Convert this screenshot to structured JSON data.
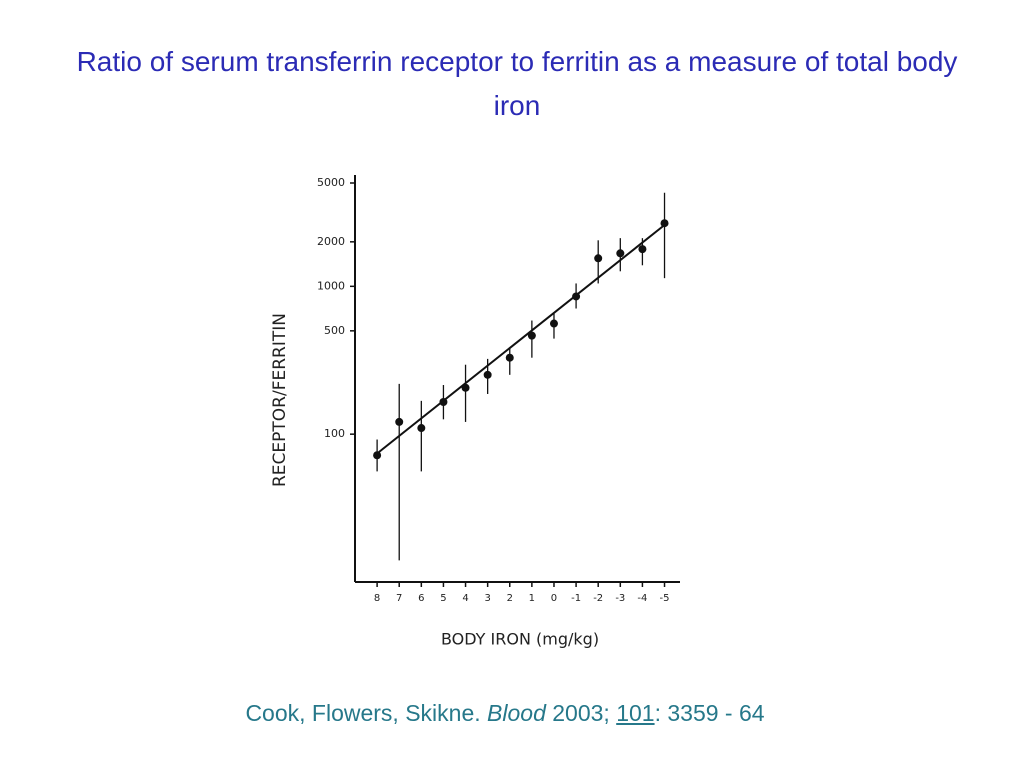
{
  "chart_data": {
    "type": "scatter",
    "title": "Ratio of serum transferrin receptor to ferritin as a measure of total body iron",
    "xlabel": "BODY IRON (mg/kg)",
    "ylabel": "RECEPTOR/FERRITIN",
    "log_y": true,
    "xlim": [
      9,
      -5.7
    ],
    "ylim": [
      10,
      5000
    ],
    "xticks": [
      8,
      7,
      6,
      5,
      4,
      3,
      2,
      1,
      0,
      -1,
      -2,
      -3,
      -4,
      -5
    ],
    "yticks": [
      100,
      500,
      1000,
      2000,
      5000
    ],
    "series": [
      {
        "color": "#111111",
        "x": [
          8,
          7,
          6,
          5,
          4,
          3,
          2,
          1,
          0,
          -1,
          -2,
          -3,
          -4,
          -5
        ],
        "values": [
          72,
          121,
          110,
          165,
          206,
          252,
          329,
          464,
          560,
          854,
          1548,
          1673,
          1785,
          2673
        ],
        "lower": [
          56,
          14,
          56,
          126,
          121,
          187,
          252,
          329,
          443,
          708,
          1046,
          1264,
          1388,
          1136
        ],
        "upper": [
          92,
          219,
          168,
          215,
          295,
          323,
          384,
          587,
          654,
          1046,
          2048,
          2118,
          2118,
          4296
        ]
      }
    ],
    "trend": {
      "x": [
        8,
        -5
      ],
      "values": [
        74,
        2600
      ]
    }
  },
  "citation": {
    "authors": "Cook, Flowers, Skikne.",
    "journal": "Blood",
    "year": "2003;",
    "volume": "101",
    "pages": ": 3359 - 64"
  }
}
